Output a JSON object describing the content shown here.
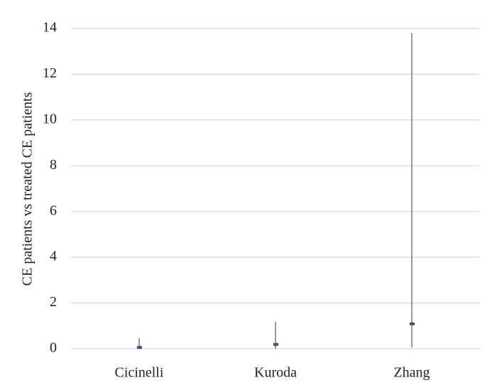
{
  "chart_data": {
    "type": "range",
    "y_label": "CE patients vs treated CE patients",
    "categories": [
      "Cicinelli",
      "Kuroda",
      "Zhang"
    ],
    "values": [
      0.06,
      0.19,
      1.09
    ],
    "low": [
      0,
      0,
      0.06
    ],
    "high": [
      0.47,
      1.18,
      13.8
    ],
    "marker_color": "#4b4a8e",
    "line_color": "#555555",
    "ylim": [
      0,
      14
    ],
    "yticks": [
      0,
      2,
      4,
      6,
      8,
      10,
      12,
      14
    ],
    "grid": true
  }
}
